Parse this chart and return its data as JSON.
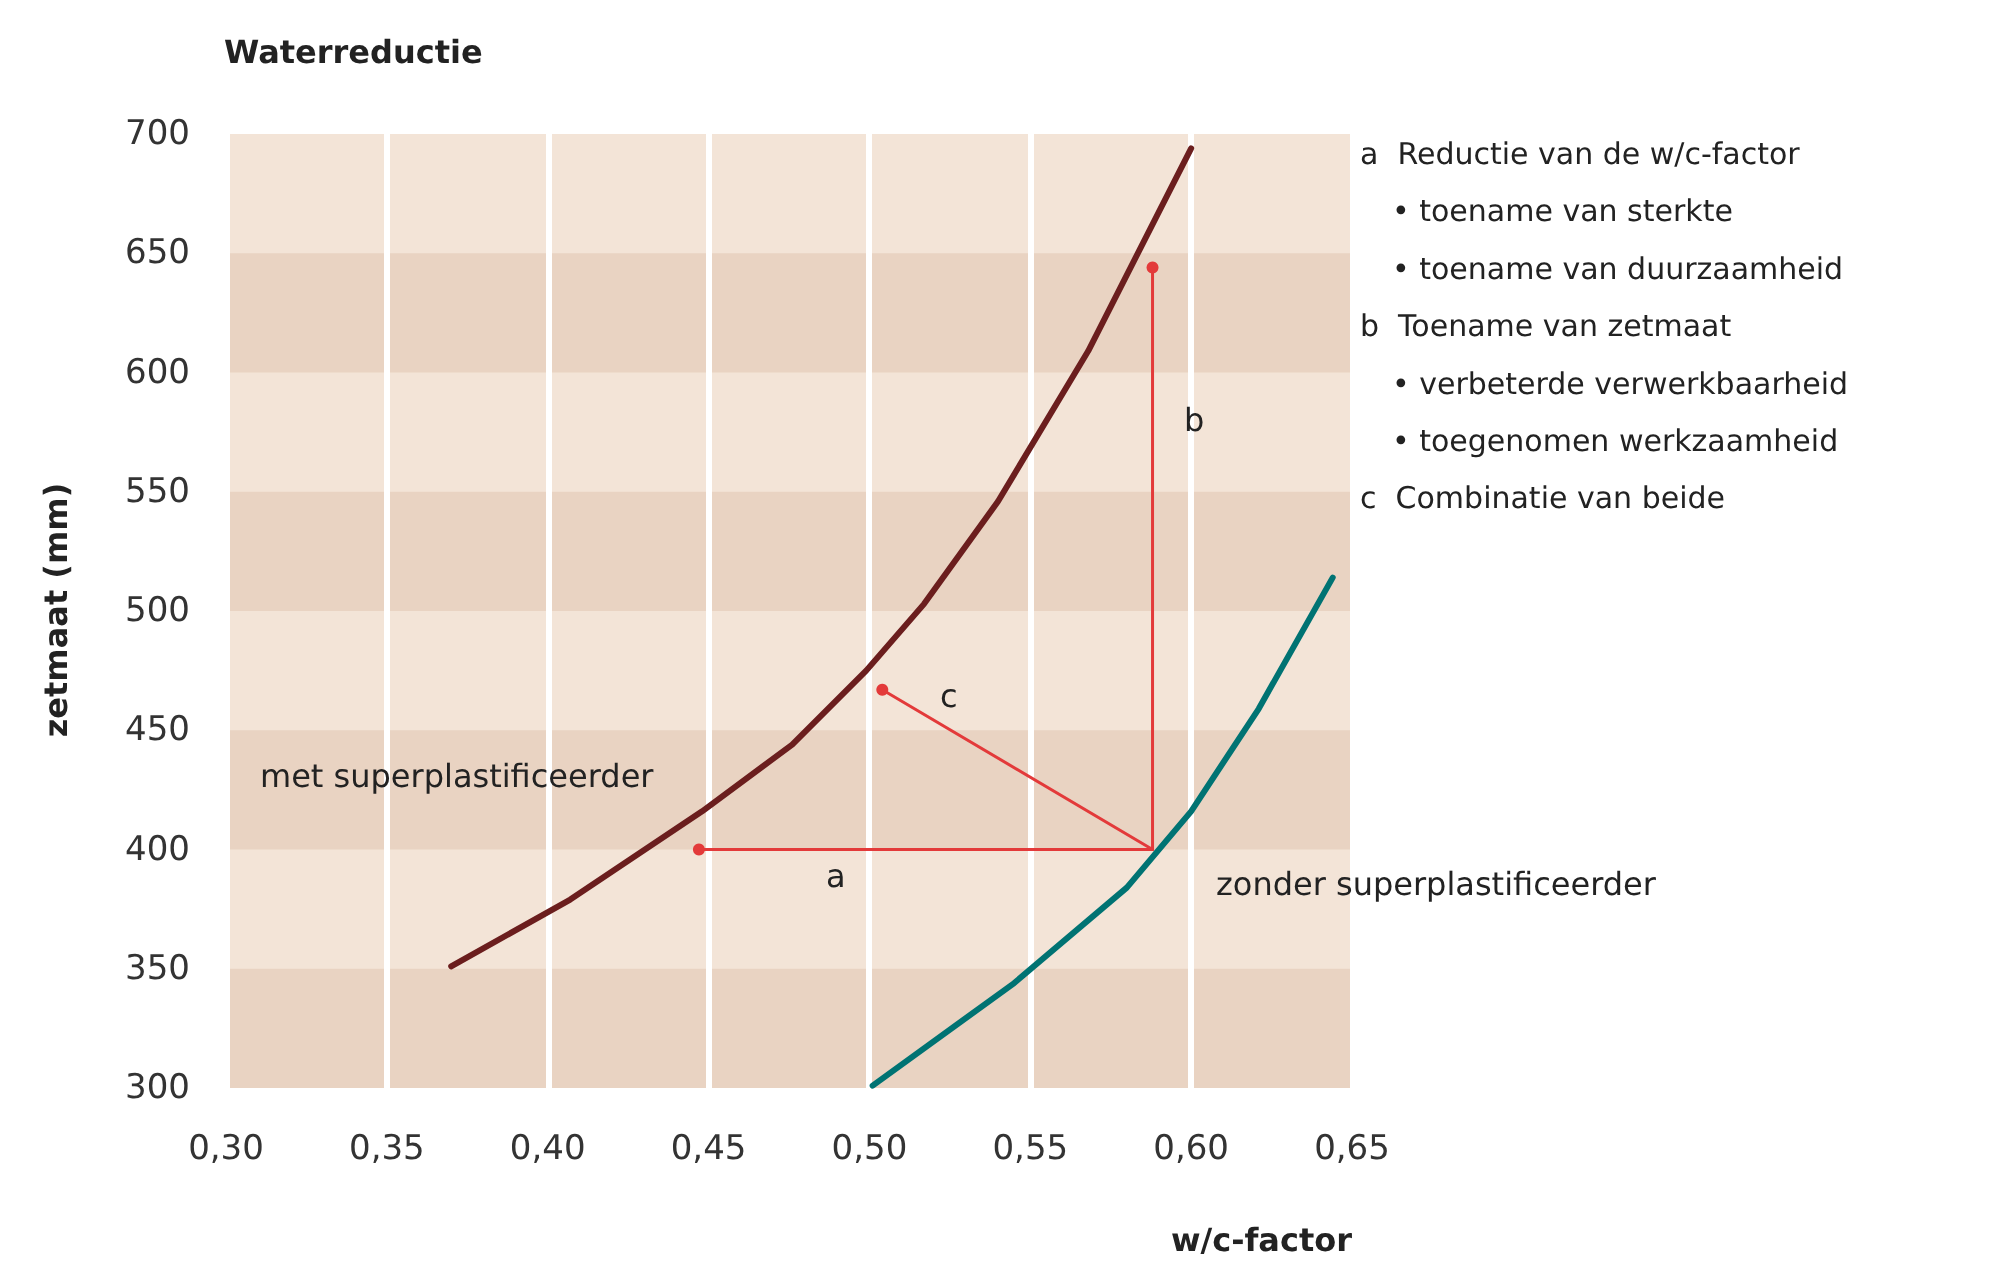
{
  "chart_data": {
    "type": "line",
    "title": "Waterreductie",
    "xlabel": "w/c-factor",
    "ylabel": "zetmaat (mm)",
    "xlim": [
      0.3,
      0.65
    ],
    "xticks": [
      {
        "value": 0.3,
        "label": "0,30"
      },
      {
        "value": 0.35,
        "label": "0,35"
      },
      {
        "value": 0.4,
        "label": "0,40"
      },
      {
        "value": 0.45,
        "label": "0,45"
      },
      {
        "value": 0.5,
        "label": "0,50"
      },
      {
        "value": 0.55,
        "label": "0,55"
      },
      {
        "value": 0.6,
        "label": "0,60"
      },
      {
        "value": 0.65,
        "label": "0,65"
      }
    ],
    "ylim": [
      300,
      700
    ],
    "yticks": [
      300,
      350,
      400,
      450,
      500,
      550,
      600,
      650,
      700
    ],
    "grid": "x",
    "marker": "none",
    "line_style": "solid",
    "series": [
      {
        "name": "met superplastificeerder",
        "color": "#6b1e1e",
        "x": [
          0.37,
          0.407,
          0.448,
          0.476,
          0.499,
          0.517,
          0.54,
          0.568,
          0.6
        ],
        "values": [
          351,
          379,
          416,
          444,
          475,
          503,
          546,
          609,
          694
        ]
      },
      {
        "name": "zonder superplastificeerder",
        "color": "#007373",
        "x": [
          0.501,
          0.545,
          0.58,
          0.6,
          0.621,
          0.644
        ],
        "values": [
          301,
          344,
          384,
          416,
          459,
          514
        ]
      },
      {
        "name": "a",
        "color": "#e33a3a",
        "marker": "circle",
        "x": [
          0.588,
          0.447
        ],
        "values": [
          400,
          400
        ]
      },
      {
        "name": "b",
        "color": "#e33a3a",
        "marker": "circle",
        "x": [
          0.588,
          0.588
        ],
        "values": [
          400,
          644
        ]
      },
      {
        "name": "c",
        "color": "#e33a3a",
        "marker": "circle",
        "x": [
          0.588,
          0.504
        ],
        "values": [
          400,
          467
        ]
      }
    ],
    "bands": [
      {
        "axis": "y",
        "from": 300,
        "to": 350,
        "color": "#e9d3c2"
      },
      {
        "axis": "y",
        "from": 400,
        "to": 450,
        "color": "#e9d3c2"
      },
      {
        "axis": "y",
        "from": 500,
        "to": 550,
        "color": "#e9d3c2"
      },
      {
        "axis": "y",
        "from": 600,
        "to": 650,
        "color": "#e9d3c2"
      }
    ],
    "annotations": [
      "a  Reductie van de w/c-factor",
      "• toename van sterkte",
      "• toename van duurzaamheid",
      "b  Toename van zetmaat",
      "• verbeterde verwerkbaarheid",
      "• toegenomen werkzaamheid",
      "c  Combinatie van beide"
    ]
  }
}
